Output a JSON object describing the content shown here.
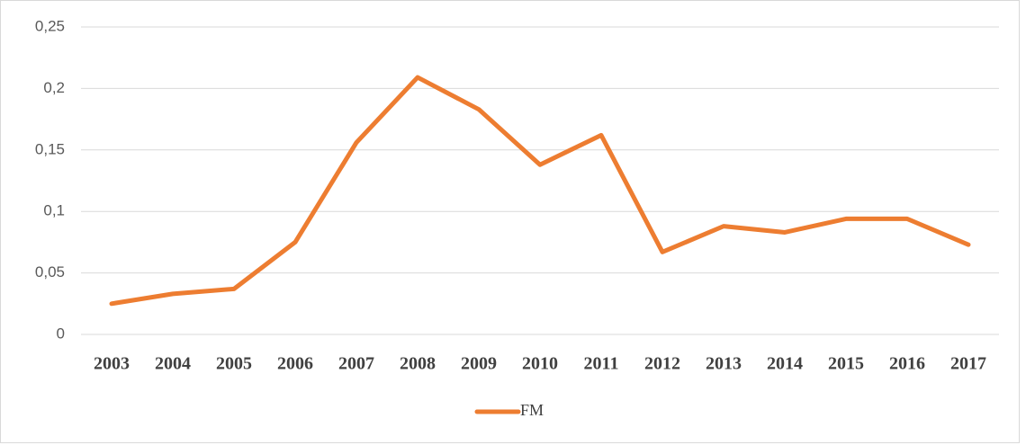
{
  "chart_data": {
    "type": "line",
    "categories": [
      "2003",
      "2004",
      "2005",
      "2006",
      "2007",
      "2008",
      "2009",
      "2010",
      "2011",
      "2012",
      "2013",
      "2014",
      "2015",
      "2016",
      "2017"
    ],
    "series": [
      {
        "name": "FM",
        "color": "#ed7d31",
        "values": [
          0.025,
          0.033,
          0.037,
          0.075,
          0.156,
          0.209,
          0.183,
          0.138,
          0.162,
          0.067,
          0.088,
          0.083,
          0.094,
          0.094,
          0.073
        ]
      }
    ],
    "ylim": [
      0,
      0.25
    ],
    "yticks": [
      0,
      {
        "value": 0.05,
        "label": "0,05"
      },
      {
        "value": 0.1,
        "label": "0,1"
      },
      {
        "value": 0.15,
        "label": "0,15"
      },
      {
        "value": 0.2,
        "label": "0,2"
      },
      {
        "value": 0.25,
        "label": "0,25"
      }
    ],
    "grid": true,
    "legend": "bottom"
  }
}
